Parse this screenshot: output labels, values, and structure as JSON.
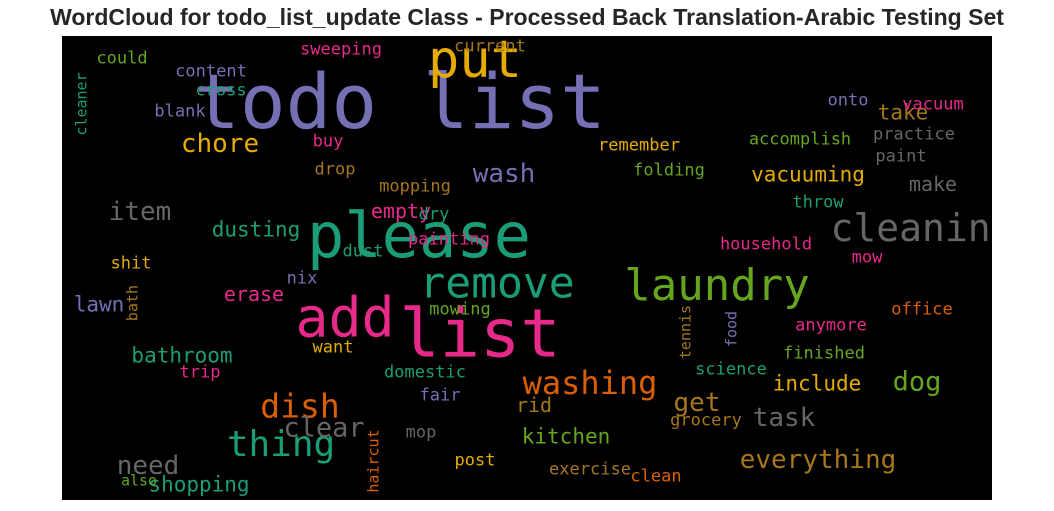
{
  "chart_data": {
    "type": "wordcloud",
    "title": "WordCloud for todo_list_update Class - Processed Back Translation-Arabic Testing Set",
    "background": "#000000",
    "words": [
      {
        "text": "todo list",
        "color": "#7570b3",
        "weight": 1.0,
        "vertical": false
      },
      {
        "text": "list",
        "color": "#e7298a",
        "weight": 0.88,
        "vertical": false
      },
      {
        "text": "please",
        "color": "#1b9e77",
        "weight": 0.82,
        "vertical": false
      },
      {
        "text": "add",
        "color": "#e7298a",
        "weight": 0.72,
        "vertical": false
      },
      {
        "text": "put",
        "color": "#e6ab02",
        "weight": 0.68,
        "vertical": false
      },
      {
        "text": "laundry",
        "color": "#66a61e",
        "weight": 0.58,
        "vertical": false
      },
      {
        "text": "remove",
        "color": "#1b9e77",
        "weight": 0.56,
        "vertical": false
      },
      {
        "text": "cleaning",
        "color": "#666666",
        "weight": 0.5,
        "vertical": false
      },
      {
        "text": "thing",
        "color": "#1b9e77",
        "weight": 0.48,
        "vertical": false
      },
      {
        "text": "dish",
        "color": "#d95f02",
        "weight": 0.44,
        "vertical": false
      },
      {
        "text": "washing",
        "color": "#d95f02",
        "weight": 0.42,
        "vertical": false
      },
      {
        "text": "clear",
        "color": "#666666",
        "weight": 0.36,
        "vertical": false
      },
      {
        "text": "dog",
        "color": "#66a61e",
        "weight": 0.36,
        "vertical": false
      },
      {
        "text": "chore",
        "color": "#e6ab02",
        "weight": 0.34,
        "vertical": false
      },
      {
        "text": "wash",
        "color": "#7570b3",
        "weight": 0.34,
        "vertical": false
      },
      {
        "text": "item",
        "color": "#666666",
        "weight": 0.34,
        "vertical": false
      },
      {
        "text": "get",
        "color": "#a6761d",
        "weight": 0.34,
        "vertical": false
      },
      {
        "text": "task",
        "color": "#666666",
        "weight": 0.34,
        "vertical": false
      },
      {
        "text": "need",
        "color": "#666666",
        "weight": 0.34,
        "vertical": false
      },
      {
        "text": "everything",
        "color": "#a6761d",
        "weight": 0.34,
        "vertical": false
      },
      {
        "text": "bathroom",
        "color": "#1b9e77",
        "weight": 0.28,
        "vertical": false
      },
      {
        "text": "dusting",
        "color": "#1b9e77",
        "weight": 0.28,
        "vertical": false
      },
      {
        "text": "vacuuming",
        "color": "#e6ab02",
        "weight": 0.28,
        "vertical": false
      },
      {
        "text": "take",
        "color": "#a6761d",
        "weight": 0.28,
        "vertical": false
      },
      {
        "text": "kitchen",
        "color": "#66a61e",
        "weight": 0.28,
        "vertical": false
      },
      {
        "text": "include",
        "color": "#e6ab02",
        "weight": 0.28,
        "vertical": false
      },
      {
        "text": "make",
        "color": "#666666",
        "weight": 0.26,
        "vertical": false
      },
      {
        "text": "shopping",
        "color": "#1b9e77",
        "weight": 0.28,
        "vertical": false
      },
      {
        "text": "lawn",
        "color": "#7570b3",
        "weight": 0.28,
        "vertical": false
      },
      {
        "text": "erase",
        "color": "#e7298a",
        "weight": 0.26,
        "vertical": false
      },
      {
        "text": "empty",
        "color": "#e7298a",
        "weight": 0.26,
        "vertical": false
      },
      {
        "text": "rid",
        "color": "#a6761d",
        "weight": 0.26,
        "vertical": false
      },
      {
        "text": "could",
        "color": "#66a61e",
        "weight": 0.22,
        "vertical": false
      },
      {
        "text": "content",
        "color": "#7570b3",
        "weight": 0.22,
        "vertical": false
      },
      {
        "text": "cross",
        "color": "#1b9e77",
        "weight": 0.22,
        "vertical": false
      },
      {
        "text": "blank",
        "color": "#7570b3",
        "weight": 0.22,
        "vertical": false
      },
      {
        "text": "sweeping",
        "color": "#e7298a",
        "weight": 0.22,
        "vertical": false
      },
      {
        "text": "current",
        "color": "#a6761d",
        "weight": 0.22,
        "vertical": false
      },
      {
        "text": "onto",
        "color": "#7570b3",
        "weight": 0.22,
        "vertical": false
      },
      {
        "text": "vacuum",
        "color": "#e7298a",
        "weight": 0.22,
        "vertical": false
      },
      {
        "text": "accomplish",
        "color": "#66a61e",
        "weight": 0.22,
        "vertical": false
      },
      {
        "text": "practice",
        "color": "#666666",
        "weight": 0.22,
        "vertical": false
      },
      {
        "text": "paint",
        "color": "#666666",
        "weight": 0.22,
        "vertical": false
      },
      {
        "text": "buy",
        "color": "#e7298a",
        "weight": 0.22,
        "vertical": false
      },
      {
        "text": "remember",
        "color": "#e6ab02",
        "weight": 0.22,
        "vertical": false
      },
      {
        "text": "drop",
        "color": "#a6761d",
        "weight": 0.22,
        "vertical": false
      },
      {
        "text": "folding",
        "color": "#66a61e",
        "weight": 0.22,
        "vertical": false
      },
      {
        "text": "mopping",
        "color": "#a6761d",
        "weight": 0.22,
        "vertical": false
      },
      {
        "text": "throw",
        "color": "#1b9e77",
        "weight": 0.22,
        "vertical": false
      },
      {
        "text": "dry",
        "color": "#1b9e77",
        "weight": 0.22,
        "vertical": false
      },
      {
        "text": "painting",
        "color": "#e7298a",
        "weight": 0.22,
        "vertical": false
      },
      {
        "text": "dust",
        "color": "#1b9e77",
        "weight": 0.22,
        "vertical": false
      },
      {
        "text": "household",
        "color": "#e7298a",
        "weight": 0.22,
        "vertical": false
      },
      {
        "text": "mow",
        "color": "#e7298a",
        "weight": 0.22,
        "vertical": false
      },
      {
        "text": "shit",
        "color": "#e6ab02",
        "weight": 0.22,
        "vertical": false
      },
      {
        "text": "nix",
        "color": "#7570b3",
        "weight": 0.22,
        "vertical": false
      },
      {
        "text": "mowing",
        "color": "#66a61e",
        "weight": 0.22,
        "vertical": false
      },
      {
        "text": "office",
        "color": "#d95f02",
        "weight": 0.22,
        "vertical": false
      },
      {
        "text": "anymore",
        "color": "#e7298a",
        "weight": 0.22,
        "vertical": false
      },
      {
        "text": "want",
        "color": "#e6ab02",
        "weight": 0.22,
        "vertical": false
      },
      {
        "text": "finished",
        "color": "#66a61e",
        "weight": 0.22,
        "vertical": false
      },
      {
        "text": "trip",
        "color": "#e7298a",
        "weight": 0.22,
        "vertical": false
      },
      {
        "text": "domestic",
        "color": "#1b9e77",
        "weight": 0.22,
        "vertical": false
      },
      {
        "text": "science",
        "color": "#1b9e77",
        "weight": 0.22,
        "vertical": false
      },
      {
        "text": "fair",
        "color": "#7570b3",
        "weight": 0.22,
        "vertical": false
      },
      {
        "text": "grocery",
        "color": "#a6761d",
        "weight": 0.22,
        "vertical": false
      },
      {
        "text": "mop",
        "color": "#666666",
        "weight": 0.22,
        "vertical": false
      },
      {
        "text": "post",
        "color": "#e6ab02",
        "weight": 0.22,
        "vertical": false
      },
      {
        "text": "exercise",
        "color": "#a6761d",
        "weight": 0.22,
        "vertical": false
      },
      {
        "text": "clean",
        "color": "#d95f02",
        "weight": 0.22,
        "vertical": false
      },
      {
        "text": "also",
        "color": "#66a61e",
        "weight": 0.2,
        "vertical": false
      },
      {
        "text": "cleaner",
        "color": "#1b9e77",
        "weight": 0.2,
        "vertical": true
      },
      {
        "text": "bath",
        "color": "#a6761d",
        "weight": 0.2,
        "vertical": true
      },
      {
        "text": "tennis",
        "color": "#a6761d",
        "weight": 0.2,
        "vertical": true
      },
      {
        "text": "food",
        "color": "#7570b3",
        "weight": 0.2,
        "vertical": true
      },
      {
        "text": "haircut",
        "color": "#d95f02",
        "weight": 0.2,
        "vertical": true
      }
    ]
  }
}
